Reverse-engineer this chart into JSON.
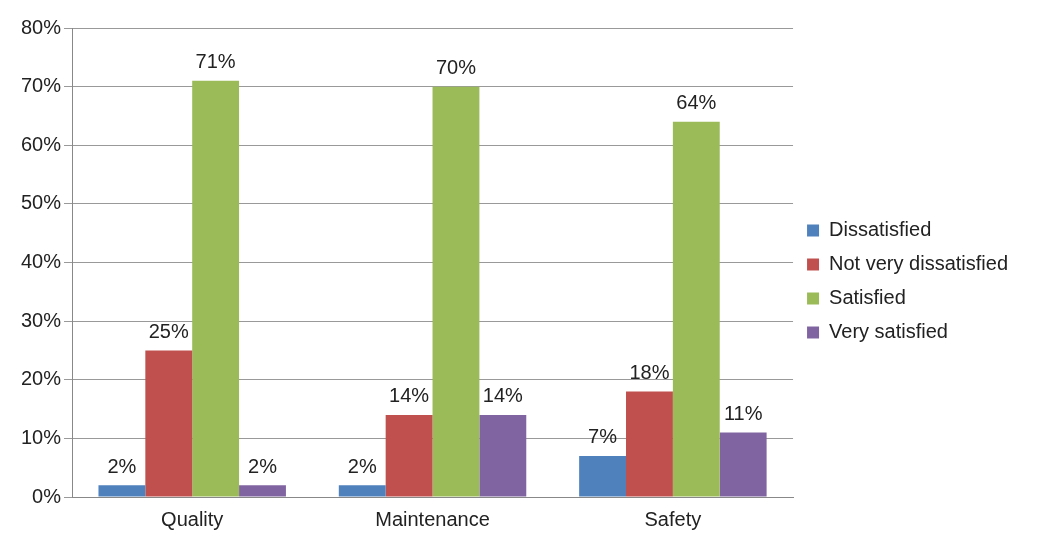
{
  "chart_data": {
    "type": "bar",
    "categories": [
      "Quality",
      "Maintenance",
      "Safety"
    ],
    "series": [
      {
        "name": "Dissatisfied",
        "color": "#4f81bd",
        "values": [
          2,
          2,
          7
        ],
        "value_labels": [
          "2%",
          "2%",
          "7%"
        ]
      },
      {
        "name": "Not very dissatisfied",
        "color": "#c0504d",
        "values": [
          25,
          14,
          18
        ],
        "value_labels": [
          "25%",
          "14%",
          "18%"
        ]
      },
      {
        "name": "Satisfied",
        "color": "#9bbb59",
        "values": [
          71,
          70,
          64
        ],
        "value_labels": [
          "71%",
          "70%",
          "64%"
        ]
      },
      {
        "name": "Very satisfied",
        "color": "#8064a2",
        "values": [
          2,
          14,
          11
        ],
        "value_labels": [
          "2%",
          "14%",
          "11%"
        ]
      }
    ],
    "ylim": [
      0,
      80
    ],
    "yticks": [
      {
        "value": 0,
        "label": "0%"
      },
      {
        "value": 10,
        "label": "10%"
      },
      {
        "value": 20,
        "label": "20%"
      },
      {
        "value": 30,
        "label": "30%"
      },
      {
        "value": 40,
        "label": "40%"
      },
      {
        "value": 50,
        "label": "50%"
      },
      {
        "value": 60,
        "label": "60%"
      },
      {
        "value": 70,
        "label": "70%"
      },
      {
        "value": 80,
        "label": "80%"
      }
    ],
    "grid": "y",
    "legend": "right"
  }
}
